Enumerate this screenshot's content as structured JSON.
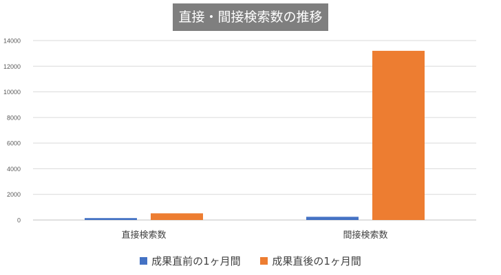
{
  "chart_data": {
    "type": "bar",
    "title": "直接・間接検索数の推移",
    "categories": [
      "直接検索数",
      "間接検索数"
    ],
    "series": [
      {
        "name": "成果直前の1ヶ月間",
        "color": "#4472c4",
        "values": [
          150,
          250
        ]
      },
      {
        "name": "成果直後の1ヶ月間",
        "color": "#ed7d31",
        "values": [
          520,
          13200
        ]
      }
    ],
    "ylim": [
      0,
      14000
    ],
    "yticks": [
      0,
      2000,
      4000,
      6000,
      8000,
      10000,
      12000,
      14000
    ],
    "grid": true,
    "legend": "bottom"
  }
}
